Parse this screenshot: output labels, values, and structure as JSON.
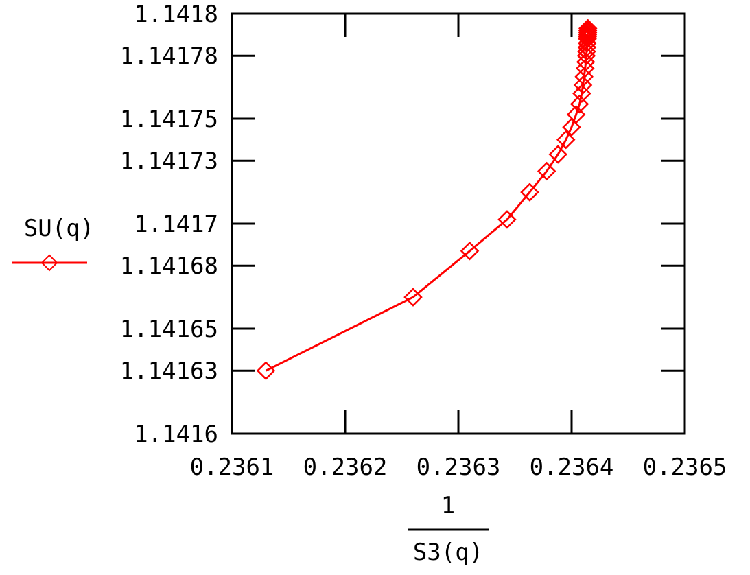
{
  "chart_data": {
    "type": "line",
    "xlabel": {
      "numerator": "1",
      "denominator": "S3(q)"
    },
    "ylabel": "SU(q)",
    "xlim": [
      0.2361,
      0.2365
    ],
    "ylim": [
      1.1416,
      1.1418
    ],
    "x_ticks": [
      "0.2361",
      "0.2362",
      "0.2363",
      "0.2364",
      "0.2365"
    ],
    "y_ticks": [
      "1.1416",
      "1.14163",
      "1.14165",
      "1.14168",
      "1.1417",
      "1.14173",
      "1.14175",
      "1.14178",
      "1.1418"
    ],
    "grid": false,
    "legend_position": "left",
    "series": [
      {
        "name": "SU(q)",
        "color": "#ff0000",
        "marker": "diamond",
        "x": [
          0.23613,
          0.23626,
          0.23631,
          0.236343,
          0.236363,
          0.236378,
          0.236388,
          0.236395,
          0.2364,
          0.236404,
          0.236407,
          0.236409,
          0.23641,
          0.236411,
          0.236412,
          0.2364125,
          0.236413,
          0.2364133,
          0.2364136,
          0.2364138,
          0.236414,
          0.2364141,
          0.2364142,
          0.2364143,
          0.2364143,
          0.2364144
        ],
        "y": [
          1.14163,
          1.141665,
          1.141687,
          1.141702,
          1.141715,
          1.141725,
          1.141733,
          1.14174,
          1.141746,
          1.141752,
          1.141757,
          1.141762,
          1.141766,
          1.14177,
          1.141774,
          1.141777,
          1.14178,
          1.141782,
          1.141784,
          1.141786,
          1.141788,
          1.141789,
          1.14179,
          1.141791,
          1.141792,
          1.141793
        ]
      }
    ]
  }
}
